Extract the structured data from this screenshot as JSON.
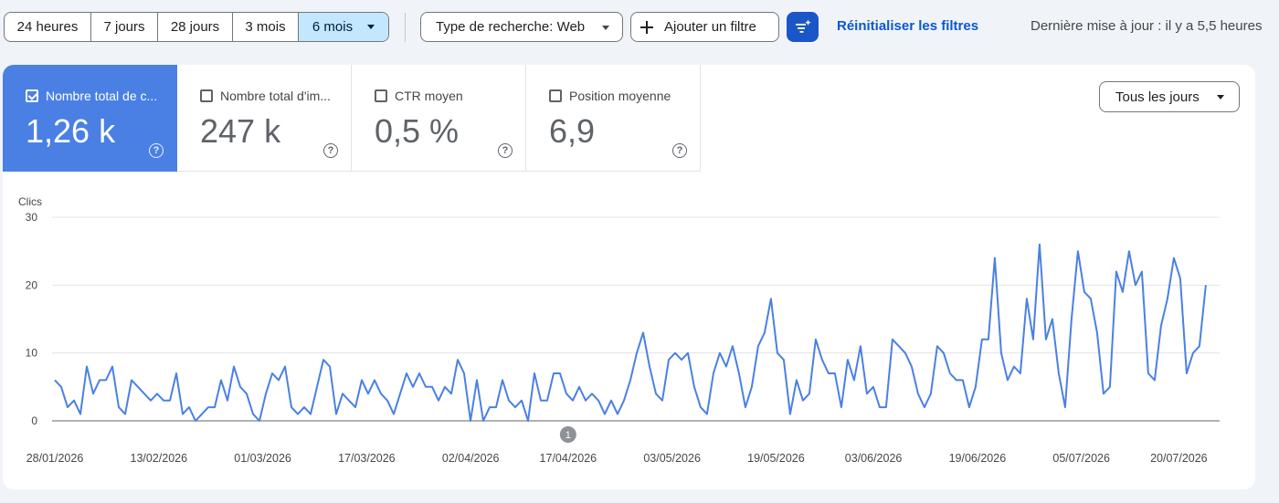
{
  "toolbar": {
    "ranges": [
      {
        "label": "24 heures",
        "active": false
      },
      {
        "label": "7 jours",
        "active": false
      },
      {
        "label": "28 jours",
        "active": false
      },
      {
        "label": "3 mois",
        "active": false
      },
      {
        "label": "6 mois",
        "active": true
      }
    ],
    "search_type": "Type de recherche: Web",
    "add_filter": "Ajouter un filtre",
    "reset": "Réinitialiser les filtres",
    "updated": "Dernière mise à jour : il y a 5,5 heures"
  },
  "metrics": [
    {
      "label": "Nombre total de c...",
      "value": "1,26 k",
      "checked": true
    },
    {
      "label": "Nombre total d'im...",
      "value": "247 k",
      "checked": false
    },
    {
      "label": "CTR moyen",
      "value": "0,5 %",
      "checked": false
    },
    {
      "label": "Position moyenne",
      "value": "6,9",
      "checked": false
    }
  ],
  "help_glyph": "?",
  "days_select": "Tous les jours",
  "colors": {
    "accent": "#4a80e4",
    "line": "#4a80e4",
    "selected_range": "#c2e7ff",
    "filter_button": "#1a56c7"
  },
  "chart_data": {
    "type": "line",
    "ylabel": "Clics",
    "ylim": [
      0,
      30
    ],
    "yticks": [
      "0",
      "10",
      "20",
      "30"
    ],
    "grid": true,
    "x_start": "2026-01-28",
    "x_end": "2026-07-25",
    "xtick_labels": [
      "28/01/2026",
      "13/02/2026",
      "01/03/2026",
      "17/03/2026",
      "02/04/2026",
      "17/04/2026",
      "03/05/2026",
      "19/05/2026",
      "03/06/2026",
      "19/06/2026",
      "05/07/2026",
      "20/07/2026"
    ],
    "xtick_dates": [
      "2026-01-28",
      "2026-02-13",
      "2026-03-01",
      "2026-03-17",
      "2026-04-02",
      "2026-04-17",
      "2026-05-03",
      "2026-05-19",
      "2026-06-03",
      "2026-06-19",
      "2026-07-05",
      "2026-07-20"
    ],
    "annotation": {
      "label": "1",
      "date": "2026-04-17"
    },
    "series": [
      {
        "values": [
          6,
          5,
          2,
          3,
          1,
          8,
          4,
          6,
          6,
          8,
          2,
          1,
          6,
          5,
          4,
          3,
          4,
          3,
          3,
          7,
          1,
          2,
          0,
          1,
          2,
          2,
          6,
          3,
          8,
          5,
          4,
          1,
          0,
          4,
          7,
          6,
          8,
          2,
          1,
          2,
          1,
          5,
          9,
          8,
          1,
          4,
          3,
          2,
          6,
          4,
          6,
          4,
          3,
          1,
          4,
          7,
          5,
          7,
          5,
          5,
          3,
          5,
          4,
          9,
          7,
          0,
          6,
          0,
          2,
          2,
          6,
          3,
          2,
          3,
          0,
          7,
          3,
          3,
          7,
          7,
          4,
          3,
          5,
          3,
          4,
          3,
          1,
          3,
          1,
          3,
          6,
          10,
          13,
          8,
          4,
          3,
          9,
          10,
          9,
          10,
          5,
          2,
          1,
          7,
          10,
          8,
          11,
          7,
          2,
          5,
          11,
          13,
          18,
          10,
          9,
          1,
          6,
          3,
          4,
          12,
          9,
          7,
          7,
          2,
          9,
          6,
          11,
          4,
          5,
          2,
          2,
          12,
          11,
          10,
          8,
          4,
          2,
          4,
          11,
          10,
          7,
          6,
          6,
          2,
          5,
          12,
          12,
          24,
          10,
          6,
          8,
          7,
          18,
          12,
          26,
          12,
          15,
          7,
          2,
          15,
          25,
          19,
          18,
          13,
          4,
          5,
          22,
          19,
          25,
          20,
          22,
          7,
          6,
          14,
          18,
          24,
          21,
          7,
          10,
          11,
          20
        ]
      }
    ]
  }
}
